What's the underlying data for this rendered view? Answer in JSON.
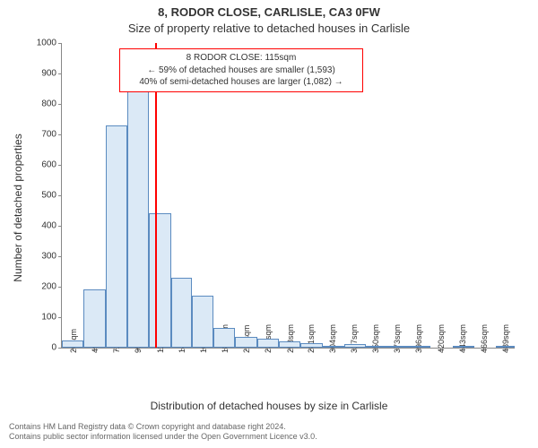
{
  "title_line1": "8, RODOR CLOSE, CARLISLE, CA3 0FW",
  "title_line2": "Size of property relative to detached houses in Carlisle",
  "y_axis_label": "Number of detached properties",
  "x_axis_label": "Distribution of detached houses by size in Carlisle",
  "footer_line1": "Contains HM Land Registry data © Crown copyright and database right 2024.",
  "footer_line2": "Contains public sector information licensed under the Open Government Licence v3.0.",
  "chart": {
    "type": "histogram",
    "xlim": [
      14,
      500
    ],
    "ylim": [
      0,
      1000
    ],
    "ytick_step": 100,
    "y_ticks": [
      0,
      100,
      200,
      300,
      400,
      500,
      600,
      700,
      800,
      900,
      1000
    ],
    "x_ticks": [
      26,
      49,
      72,
      95,
      119,
      142,
      165,
      188,
      211,
      234,
      258,
      281,
      304,
      327,
      350,
      373,
      396,
      420,
      443,
      466,
      489
    ],
    "x_tick_suffix": "sqm",
    "background_color": "#ffffff",
    "axis_color": "#888888",
    "tick_font_size": 10,
    "bar_fill": "#dbe9f6",
    "bar_border": "#5b8bc0",
    "bars": [
      {
        "x0": 14,
        "x1": 37,
        "count": 25
      },
      {
        "x0": 37,
        "x1": 61,
        "count": 190
      },
      {
        "x0": 61,
        "x1": 84,
        "count": 730
      },
      {
        "x0": 84,
        "x1": 107,
        "count": 840
      },
      {
        "x0": 107,
        "x1": 131,
        "count": 440
      },
      {
        "x0": 131,
        "x1": 154,
        "count": 230
      },
      {
        "x0": 154,
        "x1": 177,
        "count": 170
      },
      {
        "x0": 177,
        "x1": 200,
        "count": 65
      },
      {
        "x0": 200,
        "x1": 224,
        "count": 35
      },
      {
        "x0": 224,
        "x1": 247,
        "count": 28
      },
      {
        "x0": 247,
        "x1": 270,
        "count": 20
      },
      {
        "x0": 270,
        "x1": 294,
        "count": 15
      },
      {
        "x0": 294,
        "x1": 317,
        "count": 5
      },
      {
        "x0": 317,
        "x1": 340,
        "count": 12
      },
      {
        "x0": 340,
        "x1": 364,
        "count": 3
      },
      {
        "x0": 364,
        "x1": 387,
        "count": 2
      },
      {
        "x0": 387,
        "x1": 410,
        "count": 2
      },
      {
        "x0": 410,
        "x1": 434,
        "count": 0
      },
      {
        "x0": 434,
        "x1": 457,
        "count": 3
      },
      {
        "x0": 457,
        "x1": 480,
        "count": 0
      },
      {
        "x0": 480,
        "x1": 500,
        "count": 2
      }
    ],
    "marker": {
      "value": 115,
      "color": "#ff0000",
      "width": 2
    },
    "annotation": {
      "line1": "8 RODOR CLOSE: 115sqm",
      "line2": "← 59% of detached houses are smaller (1,593)",
      "line3": "40% of semi-detached houses are larger (1,082) →",
      "border_color": "#ff0000",
      "background": "#ffffff",
      "font_size": 10
    }
  }
}
